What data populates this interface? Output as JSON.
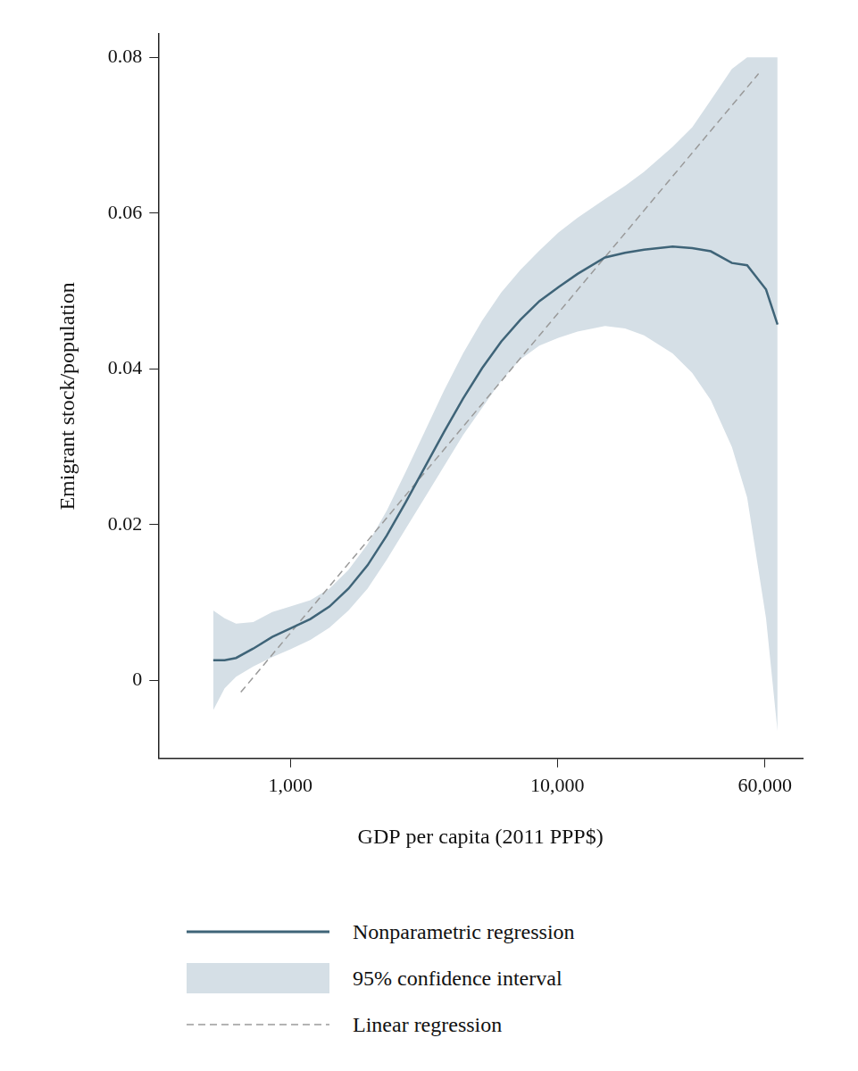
{
  "chart_data": {
    "type": "line",
    "x_label": "GDP per capita (2011 PPP$)",
    "y_label": "Emigrant stock/population",
    "log": "x",
    "grid": false,
    "legend": "bottom",
    "xlim": [
      320,
      83000
    ],
    "xticks": [
      {
        "value": 1000,
        "label": "1,000"
      },
      {
        "value": 10000,
        "label": "10,000"
      },
      {
        "value": 60000,
        "label": "60,000"
      }
    ],
    "ylim": [
      -0.01,
      0.083
    ],
    "yticks": [
      0,
      0.02,
      0.04,
      0.06,
      0.08
    ],
    "series": [
      {
        "name": "Nonparametric regression",
        "type": "line",
        "line_style": "solid",
        "color": "#3f6478",
        "x": [
          514,
          567,
          626,
          726,
          855,
          1000,
          1188,
          1401,
          1651,
          1946,
          2295,
          2706,
          3190,
          3761,
          4434,
          5227,
          6163,
          7266,
          8566,
          10100,
          11907,
          15090,
          17930,
          21130,
          27040,
          32000,
          37580,
          45080,
          51430,
          60520,
          66830
        ],
        "values": [
          0.0026,
          0.0026,
          0.0029,
          0.0041,
          0.0056,
          0.0067,
          0.0079,
          0.0095,
          0.0118,
          0.0148,
          0.0186,
          0.0229,
          0.0274,
          0.0319,
          0.0362,
          0.0401,
          0.0435,
          0.0463,
          0.0487,
          0.0505,
          0.0522,
          0.0543,
          0.0549,
          0.0553,
          0.0557,
          0.0555,
          0.0551,
          0.0536,
          0.0533,
          0.0502,
          0.0457
        ]
      },
      {
        "name": "95% confidence interval",
        "type": "band",
        "color": "#d5dfe6",
        "x": [
          514,
          567,
          626,
          726,
          855,
          1000,
          1188,
          1401,
          1651,
          1946,
          2295,
          2706,
          3190,
          3761,
          4434,
          5227,
          6163,
          7266,
          8566,
          10100,
          11907,
          15090,
          17930,
          21130,
          27040,
          32000,
          37580,
          45080,
          51430,
          60520,
          66830
        ],
        "lower": [
          -0.0038,
          -0.001,
          0.0005,
          0.0018,
          0.003,
          0.004,
          0.0052,
          0.0068,
          0.009,
          0.0118,
          0.0155,
          0.0195,
          0.0235,
          0.0275,
          0.0315,
          0.035,
          0.0385,
          0.0412,
          0.043,
          0.044,
          0.0448,
          0.0455,
          0.0452,
          0.0443,
          0.042,
          0.0395,
          0.036,
          0.03,
          0.0235,
          0.008,
          -0.0065
        ],
        "upper": [
          0.009,
          0.008,
          0.0073,
          0.0075,
          0.0088,
          0.0095,
          0.0103,
          0.0118,
          0.0142,
          0.0175,
          0.0218,
          0.0268,
          0.032,
          0.0372,
          0.042,
          0.0462,
          0.0498,
          0.0527,
          0.0552,
          0.0575,
          0.0594,
          0.0618,
          0.0635,
          0.0653,
          0.0685,
          0.071,
          0.0745,
          0.0785,
          0.08,
          0.08,
          0.08
        ]
      },
      {
        "name": "Linear regression",
        "type": "line",
        "line_style": "dashed",
        "color": "#9a9a9a",
        "x": [
          652,
          56750
        ],
        "values": [
          -0.0015,
          0.0779
        ]
      }
    ]
  }
}
